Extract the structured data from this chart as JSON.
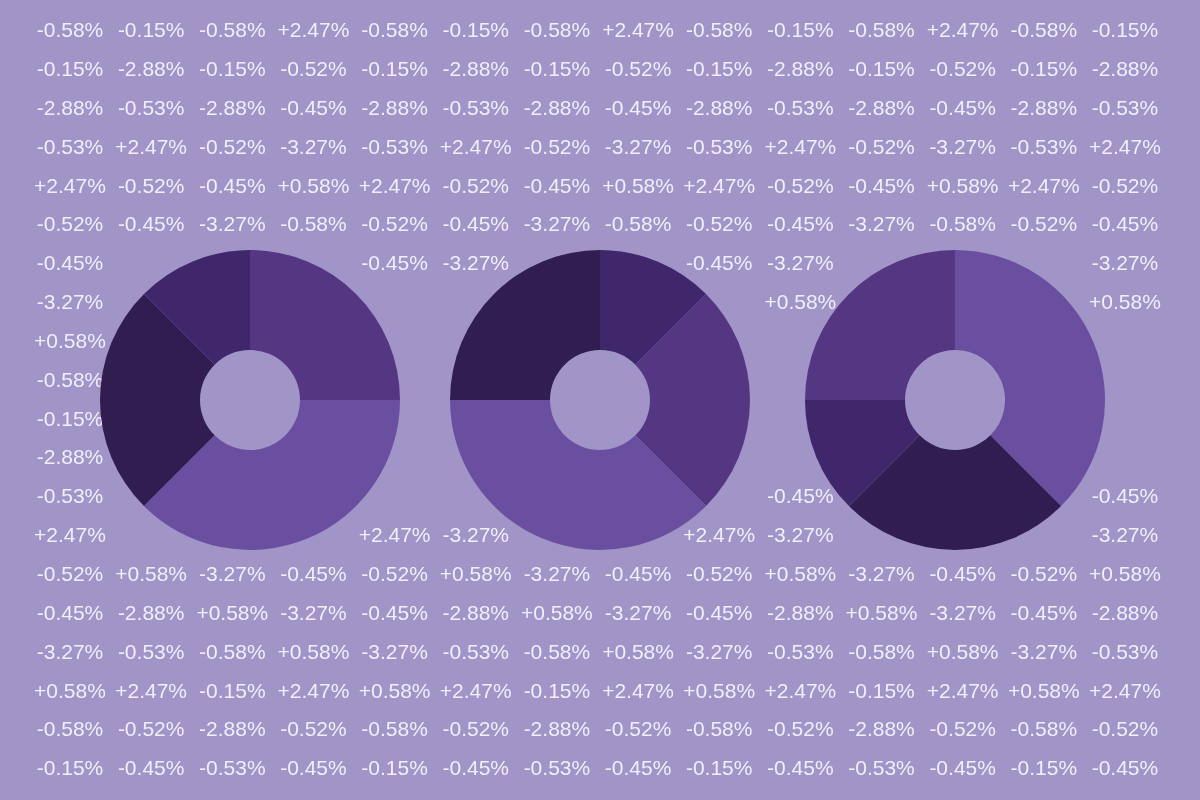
{
  "chart_data": [
    {
      "type": "other",
      "annotations": [
        "-0.58%",
        "-0.15%",
        "-0.58%",
        "+2.47%",
        "-0.58%",
        "-0.15%",
        "-0.58%",
        "+2.47%",
        "-0.58%",
        "-0.15%",
        "-0.58%",
        "+2.47%",
        "-0.58%",
        "-0.15%",
        "-0.15%",
        "-2.88%",
        "-0.15%",
        "-0.52%",
        "-0.15%",
        "-2.88%",
        "-0.15%",
        "-0.52%",
        "-0.15%",
        "-2.88%",
        "-0.15%",
        "-0.52%",
        "-0.15%",
        "-2.88%",
        "-2.88%",
        "-0.53%",
        "-2.88%",
        "-0.45%",
        "-2.88%",
        "-0.53%",
        "-2.88%",
        "-0.45%",
        "-2.88%",
        "-0.53%",
        "-2.88%",
        "-0.45%",
        "-2.88%",
        "-0.53%",
        "-0.53%",
        "+2.47%",
        "-0.52%",
        "-3.27%",
        "-0.53%",
        "+2.47%",
        "-0.52%",
        "-3.27%",
        "-0.53%",
        "+2.47%",
        "-0.52%",
        "-3.27%",
        "-0.53%",
        "+2.47%",
        "+2.47%",
        "-0.52%",
        "-0.45%",
        "+0.58%",
        "+2.47%",
        "-0.52%",
        "-0.45%",
        "+0.58%",
        "+2.47%",
        "-0.52%",
        "-0.45%",
        "+0.58%",
        "+2.47%",
        "-0.52%",
        "-0.52%",
        "-0.45%",
        "-3.27%",
        "-0.58%",
        "-0.52%",
        "-0.45%",
        "-3.27%",
        "-0.58%",
        "-0.52%",
        "-0.45%",
        "-3.27%",
        "-0.58%",
        "-0.52%",
        "-0.45%",
        "-0.45%",
        null,
        null,
        null,
        "-0.45%",
        "-3.27%",
        null,
        null,
        "-0.45%",
        "-3.27%",
        null,
        null,
        null,
        "-3.27%",
        "-3.27%",
        null,
        null,
        null,
        null,
        null,
        null,
        null,
        null,
        "+0.58%",
        null,
        null,
        null,
        "+0.58%",
        "+0.58%",
        null,
        null,
        null,
        null,
        null,
        null,
        null,
        null,
        null,
        null,
        null,
        null,
        null,
        "-0.58%",
        null,
        null,
        null,
        null,
        null,
        null,
        null,
        null,
        null,
        null,
        null,
        null,
        null,
        "-0.15%",
        null,
        null,
        null,
        null,
        null,
        null,
        null,
        null,
        null,
        null,
        null,
        null,
        null,
        "-2.88%",
        null,
        null,
        null,
        null,
        null,
        null,
        null,
        null,
        null,
        null,
        null,
        null,
        null,
        "-0.53%",
        null,
        null,
        null,
        null,
        null,
        null,
        null,
        null,
        "-0.45%",
        null,
        null,
        null,
        "-0.45%",
        "+2.47%",
        null,
        null,
        null,
        "+2.47%",
        "-3.27%",
        null,
        null,
        "+2.47%",
        "-3.27%",
        null,
        null,
        null,
        "-3.27%",
        "-0.52%",
        "+0.58%",
        "-3.27%",
        "-0.45%",
        "-0.52%",
        "+0.58%",
        "-3.27%",
        "-0.45%",
        "-0.52%",
        "+0.58%",
        "-3.27%",
        "-0.45%",
        "-0.52%",
        "+0.58%",
        "-0.45%",
        "-2.88%",
        "+0.58%",
        "-3.27%",
        "-0.45%",
        "-2.88%",
        "+0.58%",
        "-3.27%",
        "-0.45%",
        "-2.88%",
        "+0.58%",
        "-3.27%",
        "-0.45%",
        "-2.88%",
        "-3.27%",
        "-0.53%",
        "-0.58%",
        "+0.58%",
        "-3.27%",
        "-0.53%",
        "-0.58%",
        "+0.58%",
        "-3.27%",
        "-0.53%",
        "-0.58%",
        "+0.58%",
        "-3.27%",
        "-0.53%",
        "+0.58%",
        "+2.47%",
        "-0.15%",
        "+2.47%",
        "+0.58%",
        "+2.47%",
        "-0.15%",
        "+2.47%",
        "+0.58%",
        "+2.47%",
        "-0.15%",
        "+2.47%",
        "+0.58%",
        "+2.47%",
        "-0.58%",
        "-0.52%",
        "-2.88%",
        "-0.52%",
        "-0.58%",
        "-0.52%",
        "-2.88%",
        "-0.52%",
        "-0.58%",
        "-0.52%",
        "-2.88%",
        "-0.52%",
        "-0.58%",
        "-0.52%",
        "-0.15%",
        "-0.45%",
        "-0.53%",
        "-0.45%",
        "-0.15%",
        "-0.45%",
        "-0.53%",
        "-0.45%",
        "-0.15%",
        "-0.45%",
        "-0.53%",
        "-0.45%",
        "-0.15%",
        "-0.45%"
      ]
    },
    {
      "type": "donut",
      "categories": [
        null,
        null,
        null,
        null
      ],
      "values": [
        25,
        37.5,
        25,
        12.5
      ],
      "colors": [
        "#553683",
        "#6a4fa0",
        "#311d4f",
        "#40266a"
      ]
    },
    {
      "type": "donut",
      "categories": [
        null,
        null,
        null,
        null
      ],
      "values": [
        12.5,
        25,
        37.5,
        25
      ],
      "colors": [
        "#40266a",
        "#553683",
        "#6a4fa0",
        "#311d4f"
      ]
    },
    {
      "type": "donut",
      "categories": [
        null,
        null,
        null,
        null
      ],
      "values": [
        37.5,
        25,
        12.5,
        25
      ],
      "colors": [
        "#6a4fa0",
        "#311d4f",
        "#40266a",
        "#553683"
      ]
    }
  ]
}
